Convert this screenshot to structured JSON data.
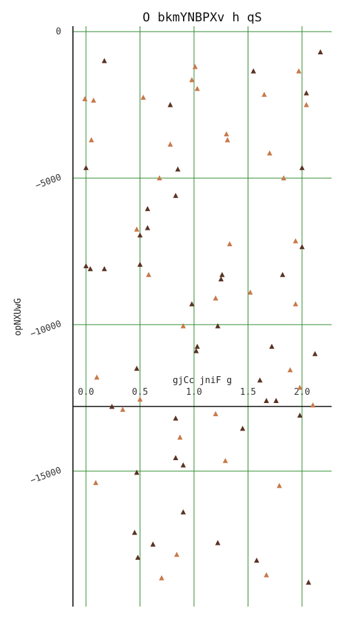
{
  "chart_data": {
    "type": "scatter",
    "title": "O bkmYNBPXv h qS",
    "xlabel": "gjCc jniF g",
    "ylabel": "opNXUwG",
    "xlim": [
      -0.12,
      2.28
    ],
    "ylim": [
      -19800,
      300
    ],
    "x_ticks": [
      "0.0",
      "0.5",
      "1.0",
      "1.5",
      "2.0"
    ],
    "y_ticks": [
      "0",
      "−5000",
      "−10000",
      "−15000"
    ],
    "grid": true,
    "colors": {
      "grid": "#2e8b2e",
      "axis": "#111111",
      "dark": "#5a3322",
      "light": "#c8794a"
    },
    "series": [
      {
        "color": "#5a3322",
        "points": [
          [
            0.17,
            -1000
          ],
          [
            0.0,
            -4650
          ],
          [
            0.0,
            -8000
          ],
          [
            0.04,
            -8100
          ],
          [
            0.17,
            -8100
          ],
          [
            0.24,
            -12800
          ],
          [
            0.47,
            -11500
          ],
          [
            0.5,
            -6950
          ],
          [
            0.5,
            -7950
          ],
          [
            0.57,
            -6050
          ],
          [
            0.57,
            -6700
          ],
          [
            0.78,
            -2500
          ],
          [
            0.85,
            -4700
          ],
          [
            0.83,
            -5600
          ],
          [
            0.83,
            -13200
          ],
          [
            0.98,
            -9300
          ],
          [
            1.03,
            -10750
          ],
          [
            1.02,
            -10900
          ],
          [
            1.22,
            -10050
          ],
          [
            1.25,
            -8450
          ],
          [
            1.26,
            -8300
          ],
          [
            1.55,
            -1350
          ],
          [
            1.72,
            -10750
          ],
          [
            1.61,
            -11900
          ],
          [
            1.67,
            -12600
          ],
          [
            1.76,
            -12600
          ],
          [
            1.82,
            -8300
          ],
          [
            2.0,
            -4650
          ],
          [
            2.0,
            -7350
          ],
          [
            2.04,
            -2100
          ],
          [
            2.17,
            -700
          ],
          [
            2.12,
            -11000
          ],
          [
            1.98,
            -13100
          ],
          [
            0.47,
            -15050
          ],
          [
            0.45,
            -17100
          ],
          [
            0.48,
            -17950
          ],
          [
            0.83,
            -14550
          ],
          [
            0.9,
            -14800
          ],
          [
            0.9,
            -16400
          ],
          [
            1.45,
            -13550
          ],
          [
            1.22,
            -17450
          ],
          [
            1.58,
            -18050
          ],
          [
            2.06,
            -18800
          ],
          [
            0.62,
            -17500
          ]
        ]
      },
      {
        "color": "#c8794a",
        "points": [
          [
            -0.01,
            -2300
          ],
          [
            0.07,
            -2350
          ],
          [
            0.05,
            -3700
          ],
          [
            0.53,
            -2250
          ],
          [
            0.98,
            -1650
          ],
          [
            1.01,
            -1200
          ],
          [
            1.03,
            -1950
          ],
          [
            0.78,
            -3850
          ],
          [
            0.68,
            -5000
          ],
          [
            0.47,
            -6750
          ],
          [
            0.58,
            -8300
          ],
          [
            1.3,
            -3500
          ],
          [
            1.31,
            -3700
          ],
          [
            1.33,
            -7250
          ],
          [
            1.65,
            -2150
          ],
          [
            1.7,
            -4150
          ],
          [
            1.83,
            -5000
          ],
          [
            1.97,
            -1350
          ],
          [
            2.04,
            -2500
          ],
          [
            1.94,
            -7150
          ],
          [
            1.52,
            -8900
          ],
          [
            1.2,
            -9100
          ],
          [
            1.94,
            -9300
          ],
          [
            0.9,
            -10050
          ],
          [
            0.1,
            -11800
          ],
          [
            0.5,
            -12550
          ],
          [
            0.34,
            -12900
          ],
          [
            1.2,
            -13050
          ],
          [
            0.87,
            -13850
          ],
          [
            1.29,
            -14650
          ],
          [
            1.79,
            -15500
          ],
          [
            1.89,
            -11550
          ],
          [
            1.98,
            -12150
          ],
          [
            2.1,
            -12750
          ],
          [
            0.09,
            -15400
          ],
          [
            0.84,
            -17850
          ],
          [
            0.7,
            -18650
          ],
          [
            1.67,
            -18550
          ]
        ]
      }
    ]
  }
}
